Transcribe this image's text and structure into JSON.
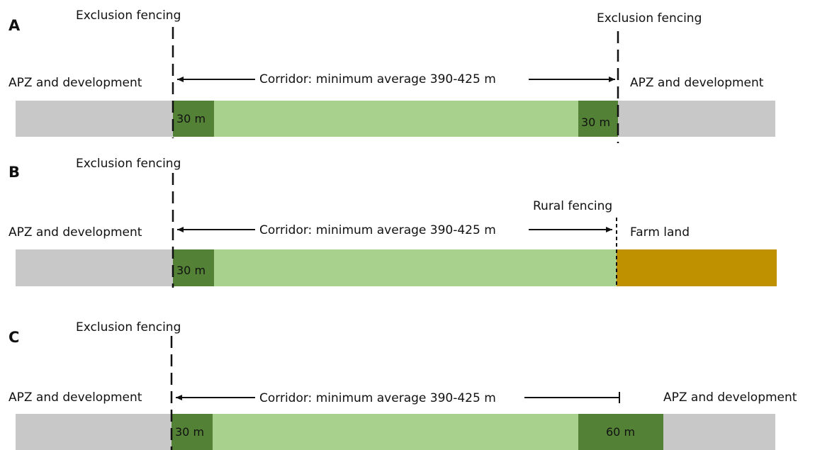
{
  "colors": {
    "development": "#c8c8c8",
    "buffer": "#538135",
    "corridor": "#a9d18e",
    "farm": "#bf9000",
    "line": "#111111"
  },
  "panels": [
    {
      "letter": "A",
      "left_fence_label": "Exclusion fencing",
      "left_zone_label": "APZ and development",
      "corridor_label": "Corridor: minimum average 390-425 m",
      "left_buffer_label": "30 m",
      "right_buffer_label": "30 m",
      "right_fence_label": "Exclusion fencing",
      "right_zone_label": "APZ and development"
    },
    {
      "letter": "B",
      "left_fence_label": "Exclusion fencing",
      "left_zone_label": "APZ and development",
      "corridor_label": "Corridor: minimum average 390-425 m",
      "left_buffer_label": "30 m",
      "right_fence_label": "Rural fencing",
      "right_zone_label": "Farm land"
    },
    {
      "letter": "C",
      "left_fence_label": "Exclusion fencing",
      "left_zone_label": "APZ and development",
      "corridor_label": "Corridor: minimum average 390-425 m",
      "left_buffer_label": "30 m",
      "right_buffer_label": "60 m",
      "right_zone_label": "APZ and development"
    }
  ]
}
